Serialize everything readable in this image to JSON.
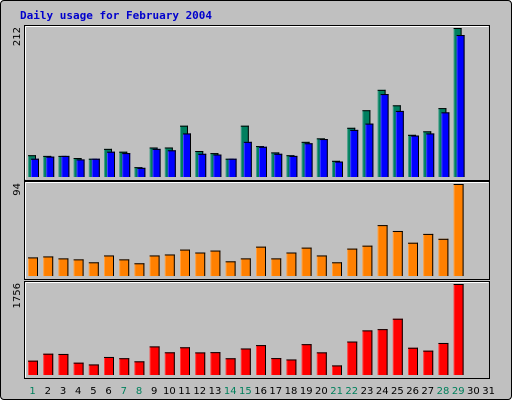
{
  "title": "Daily usage for February 2004",
  "colors": {
    "background": "#c0c0c0",
    "border": "#000000",
    "title": "#0000cc",
    "hits": "#007f5f",
    "files": "#0000ff",
    "sites": "#ff8000",
    "kbytes": "#ff0000",
    "weekday_label": "#000000",
    "weekend_label": "#00805c"
  },
  "chart_data": [
    {
      "type": "bar",
      "panel": "hits-files",
      "categories": [
        "1",
        "2",
        "3",
        "4",
        "5",
        "6",
        "7",
        "8",
        "9",
        "10",
        "11",
        "12",
        "13",
        "14",
        "15",
        "16",
        "17",
        "18",
        "19",
        "20",
        "21",
        "22",
        "23",
        "24",
        "25",
        "26",
        "27",
        "28",
        "29",
        "30",
        "31"
      ],
      "weekend_days": [
        "1",
        "7",
        "8",
        "14",
        "15",
        "21",
        "22",
        "28",
        "29"
      ],
      "ymax_label": "212",
      "ylim": [
        0,
        212
      ],
      "series": [
        {
          "key": "hits",
          "values": [
            31,
            30,
            30,
            27,
            26,
            40,
            36,
            14,
            42,
            42,
            73,
            37,
            34,
            26,
            73,
            44,
            35,
            31,
            50,
            55,
            23,
            70,
            95,
            124,
            102,
            60,
            65,
            98,
            212,
            null,
            null
          ]
        },
        {
          "key": "files",
          "values": [
            26,
            29,
            30,
            25,
            26,
            36,
            34,
            13,
            40,
            38,
            62,
            33,
            32,
            26,
            50,
            43,
            33,
            30,
            48,
            54,
            22,
            67,
            76,
            118,
            94,
            59,
            62,
            92,
            202,
            null,
            null
          ]
        }
      ]
    },
    {
      "type": "bar",
      "panel": "sites",
      "categories": [
        "1",
        "2",
        "3",
        "4",
        "5",
        "6",
        "7",
        "8",
        "9",
        "10",
        "11",
        "12",
        "13",
        "14",
        "15",
        "16",
        "17",
        "18",
        "19",
        "20",
        "21",
        "22",
        "23",
        "24",
        "25",
        "26",
        "27",
        "28",
        "29",
        "30",
        "31"
      ],
      "ymax_label": "94",
      "ylim": [
        0,
        94
      ],
      "series": [
        {
          "key": "sites",
          "values": [
            19,
            20,
            18,
            17,
            14,
            21,
            17,
            13,
            21,
            22,
            27,
            24,
            26,
            15,
            18,
            30,
            18,
            24,
            29,
            21,
            14,
            28,
            31,
            52,
            46,
            34,
            43,
            38,
            94,
            null,
            null
          ]
        }
      ]
    },
    {
      "type": "bar",
      "panel": "kbytes",
      "categories": [
        "1",
        "2",
        "3",
        "4",
        "5",
        "6",
        "7",
        "8",
        "9",
        "10",
        "11",
        "12",
        "13",
        "14",
        "15",
        "16",
        "17",
        "18",
        "19",
        "20",
        "21",
        "22",
        "23",
        "24",
        "25",
        "26",
        "27",
        "28",
        "29",
        "30",
        "31"
      ],
      "ymax_label": "1756",
      "ylim": [
        0,
        1756
      ],
      "series": [
        {
          "key": "kbytes",
          "values": [
            277,
            411,
            406,
            238,
            204,
            348,
            324,
            264,
            552,
            438,
            535,
            436,
            441,
            323,
            512,
            577,
            326,
            300,
            595,
            437,
            185,
            646,
            861,
            885,
            1086,
            526,
            470,
            618,
            1756,
            null,
            null
          ]
        }
      ]
    }
  ]
}
